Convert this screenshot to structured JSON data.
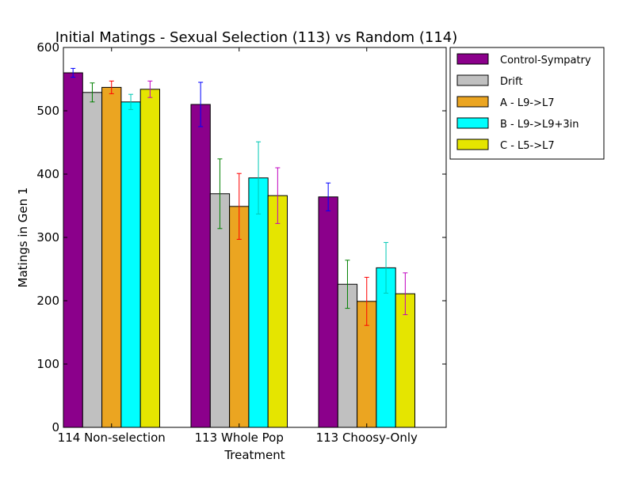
{
  "chart_data": {
    "type": "bar",
    "title": "Initial Matings - Sexual Selection (113) vs Random (114)",
    "xlabel": "Treatment",
    "ylabel": "Matings in Gen 1",
    "ylim": [
      0,
      600
    ],
    "yticks": [
      "0",
      "100",
      "200",
      "300",
      "400",
      "500",
      "600"
    ],
    "categories": [
      "114 Non-selection",
      "113 Whole Pop",
      "113 Choosy-Only"
    ],
    "legend_position": "outside-top-right",
    "grid": false,
    "series": [
      {
        "name": "Control-Sympatry",
        "color": "#8b008b",
        "error_color": "#0000ff",
        "values": [
          560,
          510,
          364
        ],
        "errors": [
          7,
          35,
          22
        ]
      },
      {
        "name": "Drift",
        "color": "#c0c0c0",
        "error_color": "#008000",
        "values": [
          529,
          369,
          226
        ],
        "errors": [
          15,
          55,
          38
        ]
      },
      {
        "name": "A - L9->L7",
        "color": "#eba521",
        "error_color": "#ff0000",
        "values": [
          537,
          349,
          199
        ],
        "errors": [
          10,
          52,
          38
        ]
      },
      {
        "name": "B - L9->L9+3in",
        "color": "#00ffff",
        "error_color": "#00c8b4",
        "values": [
          514,
          394,
          252
        ],
        "errors": [
          12,
          57,
          40
        ]
      },
      {
        "name": "C - L5->L7",
        "color": "#e5e500",
        "error_color": "#c000c0",
        "values": [
          534,
          366,
          211
        ],
        "errors": [
          13,
          44,
          33
        ]
      }
    ]
  }
}
